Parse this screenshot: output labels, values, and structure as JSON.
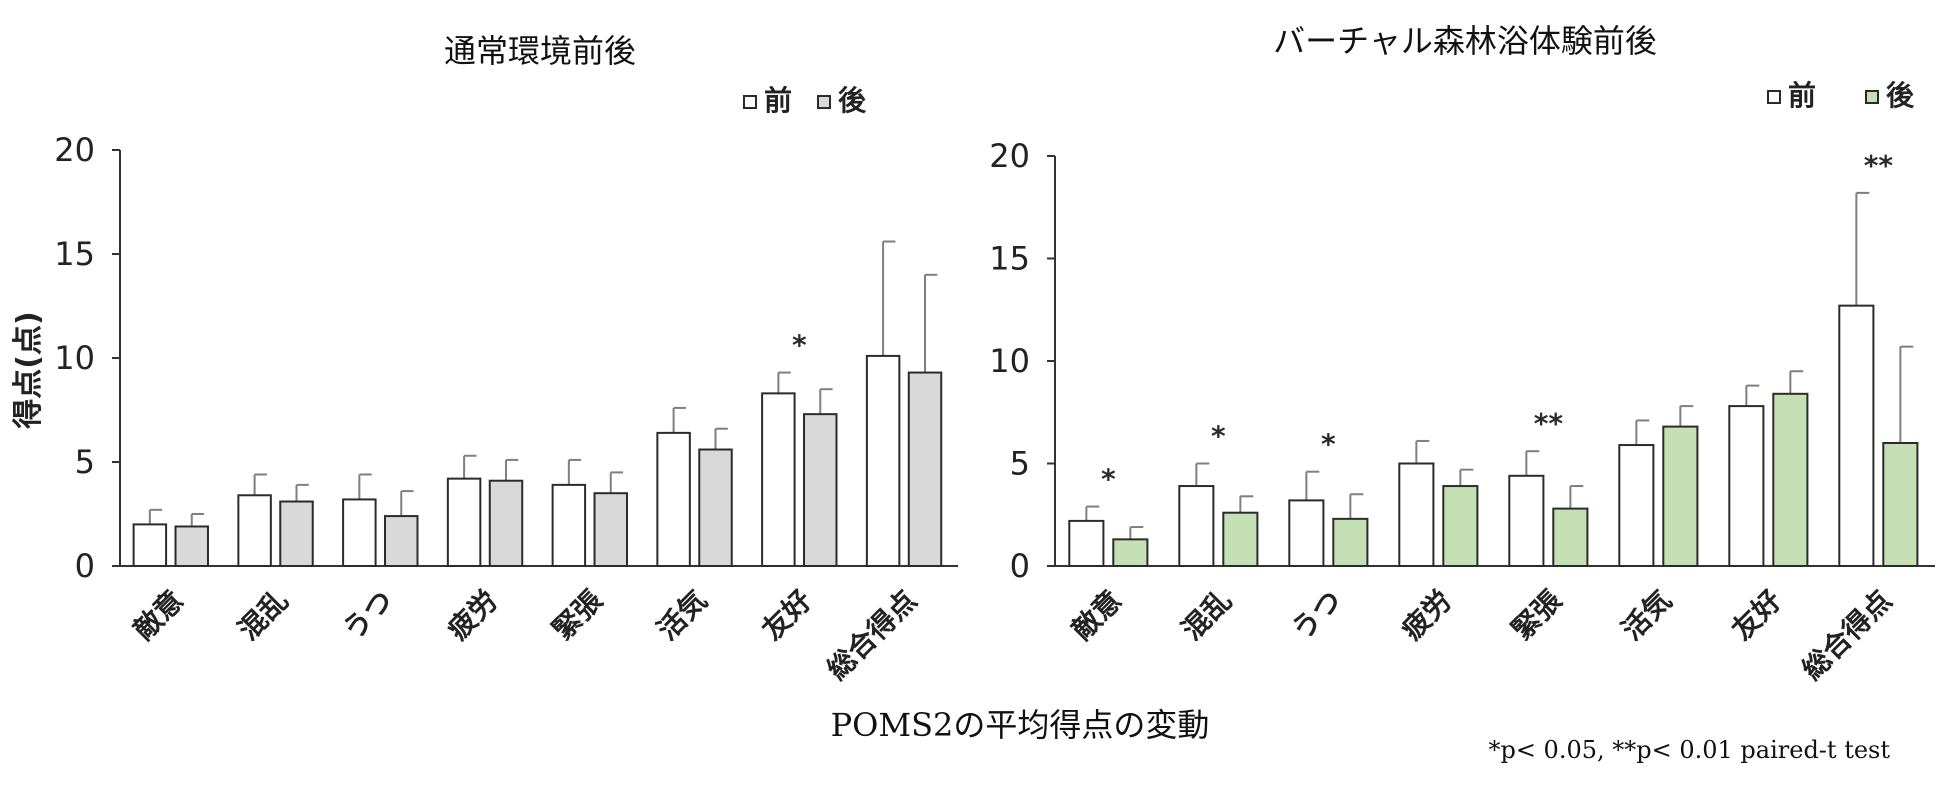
{
  "caption": "POMS2の平均得点の変動",
  "footnote": "*p< 0.05, **p< 0.01 paired-t test",
  "chart_data": [
    {
      "type": "bar",
      "title": "通常環境前後",
      "ylabel": "得点(点)",
      "ylim": [
        0,
        20
      ],
      "yticks": [
        "0",
        "5",
        "10",
        "15",
        "20"
      ],
      "categories": [
        "敵意",
        "混乱",
        "うつ",
        "疲労",
        "緊張",
        "活気",
        "友好",
        "総合得点"
      ],
      "legend": {
        "position": "top-right",
        "before": "前",
        "after": "後"
      },
      "colors": {
        "before": "#ffffff",
        "after": "#d9d9d9",
        "stroke": "#2b2b2b",
        "error": "#7f7f7f"
      },
      "series": [
        {
          "name": "前",
          "values": [
            2.0,
            3.4,
            3.2,
            4.2,
            3.9,
            6.4,
            8.3,
            10.1
          ],
          "errors": [
            0.7,
            1.0,
            1.2,
            1.1,
            1.2,
            1.2,
            1.0,
            5.5
          ]
        },
        {
          "name": "後",
          "values": [
            1.9,
            3.1,
            2.4,
            4.1,
            3.5,
            5.6,
            7.3,
            9.3
          ],
          "errors": [
            0.6,
            0.8,
            1.2,
            1.0,
            1.0,
            1.0,
            1.2,
            4.7
          ]
        }
      ],
      "significance": [
        "",
        "",
        "",
        "",
        "",
        "",
        "*",
        ""
      ]
    },
    {
      "type": "bar",
      "title": "バーチャル森林浴体験前後",
      "ylabel": "",
      "ylim": [
        0,
        20
      ],
      "yticks": [
        "0",
        "5",
        "10",
        "15",
        "20"
      ],
      "categories": [
        "敵意",
        "混乱",
        "うつ",
        "疲労",
        "緊張",
        "活気",
        "友好",
        "総合得点"
      ],
      "legend": {
        "position": "top-right",
        "before": "前",
        "after": "後"
      },
      "colors": {
        "before": "#ffffff",
        "after": "#c5e0b4",
        "stroke": "#2b2b2b",
        "error": "#7f7f7f"
      },
      "series": [
        {
          "name": "前",
          "values": [
            2.2,
            3.9,
            3.2,
            5.0,
            4.4,
            5.9,
            7.8,
            12.7
          ],
          "errors": [
            0.7,
            1.1,
            1.4,
            1.1,
            1.2,
            1.2,
            1.0,
            5.5
          ]
        },
        {
          "name": "後",
          "values": [
            1.3,
            2.6,
            2.3,
            3.9,
            2.8,
            6.8,
            8.4,
            6.0
          ],
          "errors": [
            0.6,
            0.8,
            1.2,
            0.8,
            1.1,
            1.0,
            1.1,
            4.7
          ]
        }
      ],
      "significance": [
        "*",
        "*",
        "*",
        "",
        "**",
        "",
        "",
        "**"
      ]
    }
  ]
}
